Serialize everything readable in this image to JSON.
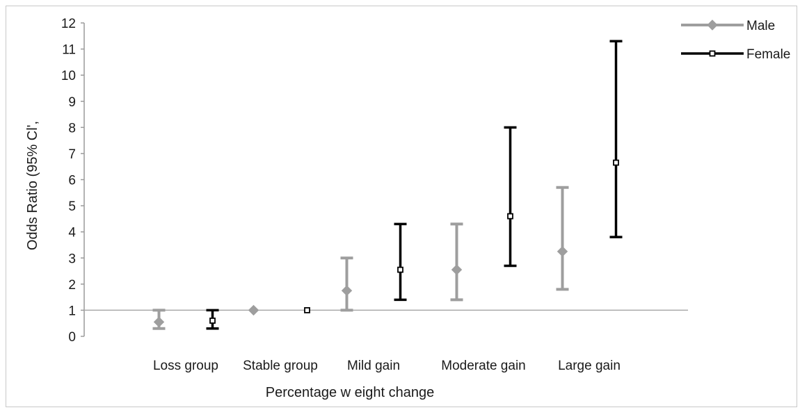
{
  "chart_data": {
    "type": "errorbar",
    "title": "",
    "xlabel": "Percentage w eight change",
    "ylabel": "Odds Ratio (95% Cl',",
    "categories": [
      "Loss group",
      "Stable group",
      "Mild gain",
      "Moderate gain",
      "Large gain"
    ],
    "yticks": [
      "0",
      "1",
      "2",
      "3",
      "4",
      "5",
      "6",
      "7",
      "8",
      "9",
      "10",
      "11",
      "12"
    ],
    "ylim": [
      0,
      12
    ],
    "reference_line": 1,
    "grid": false,
    "legend_position": "top-right",
    "series": [
      {
        "name": "Male",
        "color": "#9e9e9e",
        "marker": "diamond",
        "values": [
          0.55,
          1.0,
          1.75,
          2.55,
          3.25
        ],
        "lower": [
          0.3,
          1.0,
          1.0,
          1.4,
          1.8
        ],
        "upper": [
          1.0,
          1.0,
          3.0,
          4.3,
          5.7
        ]
      },
      {
        "name": "Female",
        "color": "#000000",
        "marker": "square",
        "values": [
          0.6,
          1.0,
          2.55,
          4.6,
          6.65
        ],
        "lower": [
          0.3,
          1.0,
          1.4,
          2.7,
          3.8
        ],
        "upper": [
          1.0,
          1.0,
          4.3,
          8.0,
          11.3
        ]
      }
    ]
  }
}
